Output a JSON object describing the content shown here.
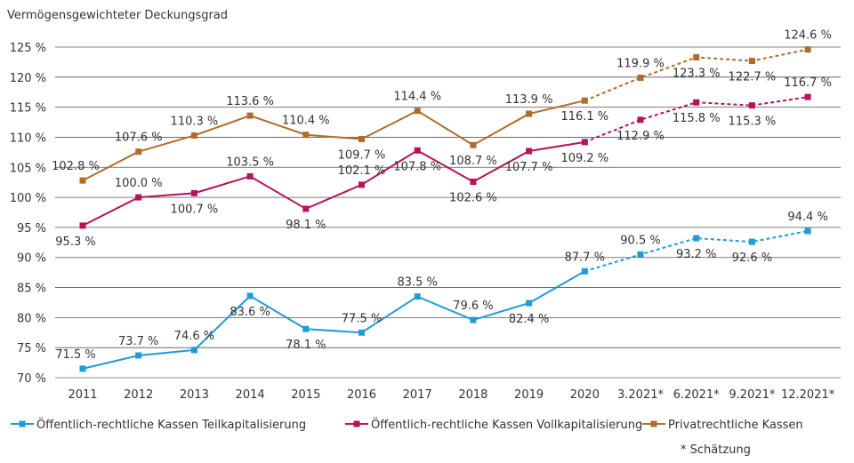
{
  "chart_data": {
    "type": "line",
    "title": "Vermögensgewichteter Deckungsgrad",
    "categories": [
      "2011",
      "2012",
      "2013",
      "2014",
      "2015",
      "2016",
      "2017",
      "2018",
      "2019",
      "2020",
      "3.2021*",
      "6.2021*",
      "9.2021*",
      "12.2021*"
    ],
    "ylim": [
      70,
      125
    ],
    "yticks": [
      70,
      75,
      80,
      85,
      90,
      95,
      100,
      105,
      110,
      115,
      120,
      125
    ],
    "y_unit": "%",
    "grid": "horizontal",
    "legend_placement": "bottom",
    "estimate_from_category": "2020",
    "footnote": "* Schätzung",
    "series": [
      {
        "name": "Öffentlich-rechtliche Kassen Teilkapitalisierung",
        "color": "#1f9bd7",
        "values": [
          71.5,
          73.7,
          74.6,
          83.6,
          78.1,
          77.5,
          83.5,
          79.6,
          82.4,
          87.7,
          90.5,
          93.2,
          92.6,
          94.4
        ]
      },
      {
        "name": "Öffentlich-rechtliche Kassen Vollkapitalisierung",
        "color": "#b5135a",
        "values": [
          95.3,
          100.0,
          100.7,
          103.5,
          98.1,
          102.1,
          107.8,
          102.6,
          107.7,
          109.2,
          112.9,
          115.8,
          115.3,
          116.7
        ]
      },
      {
        "name": "Privatrechtliche Kassen",
        "color": "#b06d2a",
        "values": [
          102.8,
          107.6,
          110.3,
          113.6,
          110.4,
          109.7,
          114.4,
          108.7,
          113.9,
          116.1,
          119.9,
          123.3,
          122.7,
          124.6
        ]
      }
    ]
  }
}
